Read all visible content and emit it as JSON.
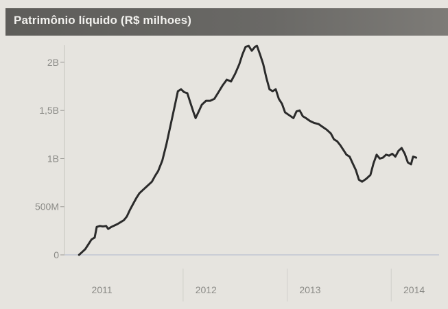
{
  "title": "Patrimônio líquido (R$ milhoes)",
  "colors": {
    "background": "#e6e4df",
    "title_bar": "#5e5d5a",
    "title_text": "#f2f1ee",
    "line": "#2b2b2b",
    "axis_text": "#8a8a86",
    "baseline": "#b9bfd0"
  },
  "chart_data": {
    "type": "line",
    "title": "Patrimônio líquido (R$ milhoes)",
    "xlabel": "",
    "ylabel": "",
    "y_ticks": [
      {
        "value": 0,
        "label": "0"
      },
      {
        "value": 500000000,
        "label": "500M"
      },
      {
        "value": 1000000000,
        "label": "1B"
      },
      {
        "value": 1500000000,
        "label": "1,5B"
      },
      {
        "value": 2000000000,
        "label": "2B"
      }
    ],
    "x_ticks": [
      "2011",
      "2012",
      "2013",
      "2014"
    ],
    "xlim": [
      2010.86,
      2014.46
    ],
    "ylim": [
      0,
      2220000000
    ],
    "grid": false,
    "series": [
      {
        "points": [
          [
            2011.0,
            0
          ],
          [
            2011.03,
            30000000
          ],
          [
            2011.06,
            60000000
          ],
          [
            2011.09,
            110000000
          ],
          [
            2011.12,
            160000000
          ],
          [
            2011.15,
            180000000
          ],
          [
            2011.17,
            290000000
          ],
          [
            2011.2,
            300000000
          ],
          [
            2011.23,
            295000000
          ],
          [
            2011.26,
            300000000
          ],
          [
            2011.28,
            270000000
          ],
          [
            2011.31,
            290000000
          ],
          [
            2011.34,
            305000000
          ],
          [
            2011.37,
            320000000
          ],
          [
            2011.4,
            340000000
          ],
          [
            2011.43,
            360000000
          ],
          [
            2011.46,
            400000000
          ],
          [
            2011.49,
            470000000
          ],
          [
            2011.52,
            530000000
          ],
          [
            2011.55,
            590000000
          ],
          [
            2011.58,
            640000000
          ],
          [
            2011.61,
            670000000
          ],
          [
            2011.64,
            700000000
          ],
          [
            2011.67,
            730000000
          ],
          [
            2011.7,
            760000000
          ],
          [
            2011.73,
            820000000
          ],
          [
            2011.76,
            870000000
          ],
          [
            2011.8,
            980000000
          ],
          [
            2011.84,
            1150000000
          ],
          [
            2011.88,
            1350000000
          ],
          [
            2011.92,
            1550000000
          ],
          [
            2011.95,
            1700000000
          ],
          [
            2011.98,
            1720000000
          ],
          [
            2012.01,
            1690000000
          ],
          [
            2012.04,
            1680000000
          ],
          [
            2012.07,
            1580000000
          ],
          [
            2012.1,
            1480000000
          ],
          [
            2012.12,
            1420000000
          ],
          [
            2012.15,
            1490000000
          ],
          [
            2012.18,
            1560000000
          ],
          [
            2012.22,
            1600000000
          ],
          [
            2012.26,
            1600000000
          ],
          [
            2012.3,
            1620000000
          ],
          [
            2012.34,
            1690000000
          ],
          [
            2012.38,
            1760000000
          ],
          [
            2012.42,
            1820000000
          ],
          [
            2012.46,
            1800000000
          ],
          [
            2012.5,
            1880000000
          ],
          [
            2012.54,
            1980000000
          ],
          [
            2012.57,
            2080000000
          ],
          [
            2012.6,
            2160000000
          ],
          [
            2012.63,
            2170000000
          ],
          [
            2012.66,
            2120000000
          ],
          [
            2012.69,
            2160000000
          ],
          [
            2012.71,
            2170000000
          ],
          [
            2012.74,
            2080000000
          ],
          [
            2012.77,
            1980000000
          ],
          [
            2012.8,
            1840000000
          ],
          [
            2012.83,
            1720000000
          ],
          [
            2012.86,
            1700000000
          ],
          [
            2012.89,
            1720000000
          ],
          [
            2012.92,
            1620000000
          ],
          [
            2012.95,
            1570000000
          ],
          [
            2012.98,
            1480000000
          ],
          [
            2013.02,
            1450000000
          ],
          [
            2013.06,
            1420000000
          ],
          [
            2013.09,
            1490000000
          ],
          [
            2013.12,
            1500000000
          ],
          [
            2013.15,
            1440000000
          ],
          [
            2013.18,
            1420000000
          ],
          [
            2013.22,
            1390000000
          ],
          [
            2013.26,
            1370000000
          ],
          [
            2013.3,
            1360000000
          ],
          [
            2013.34,
            1330000000
          ],
          [
            2013.38,
            1300000000
          ],
          [
            2013.42,
            1260000000
          ],
          [
            2013.45,
            1200000000
          ],
          [
            2013.48,
            1180000000
          ],
          [
            2013.51,
            1140000000
          ],
          [
            2013.54,
            1090000000
          ],
          [
            2013.57,
            1040000000
          ],
          [
            2013.6,
            1020000000
          ],
          [
            2013.63,
            950000000
          ],
          [
            2013.66,
            880000000
          ],
          [
            2013.69,
            780000000
          ],
          [
            2013.72,
            760000000
          ],
          [
            2013.76,
            790000000
          ],
          [
            2013.8,
            830000000
          ],
          [
            2013.83,
            950000000
          ],
          [
            2013.86,
            1040000000
          ],
          [
            2013.89,
            1000000000
          ],
          [
            2013.92,
            1010000000
          ],
          [
            2013.95,
            1040000000
          ],
          [
            2013.98,
            1030000000
          ],
          [
            2014.01,
            1050000000
          ],
          [
            2014.04,
            1020000000
          ],
          [
            2014.07,
            1080000000
          ],
          [
            2014.1,
            1110000000
          ],
          [
            2014.13,
            1050000000
          ],
          [
            2014.16,
            960000000
          ],
          [
            2014.19,
            940000000
          ],
          [
            2014.21,
            1020000000
          ],
          [
            2014.24,
            1010000000
          ]
        ]
      }
    ]
  }
}
